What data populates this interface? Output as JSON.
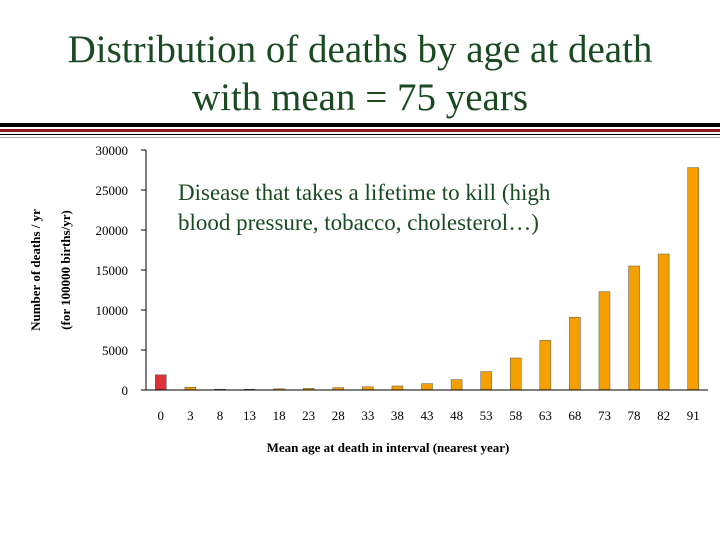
{
  "title": {
    "line1": "Distribution of deaths by age at death",
    "line2": "with mean = 75 years"
  },
  "annotation": {
    "line1": "Disease that takes a lifetime to kill (high",
    "line2": "blood pressure, tobacco, cholesterol…)"
  },
  "colors": {
    "title": "#1a4a22",
    "bar_default": "#f5a000",
    "bar_first": "#e0303a",
    "rule_dark": "#000000",
    "rule_accent": "#8b1a1a"
  },
  "chart_data": {
    "type": "bar",
    "xlabel": "Mean age at death in interval (nearest year)",
    "ylabel_line1": "Number of deaths / yr",
    "ylabel_line2": "(for 100000 births/yr)",
    "ylim": [
      0,
      30000
    ],
    "yticks": [
      0,
      5000,
      10000,
      15000,
      20000,
      25000,
      30000
    ],
    "grid": false,
    "categories": [
      "0",
      "3",
      "8",
      "13",
      "18",
      "23",
      "28",
      "33",
      "38",
      "43",
      "48",
      "53",
      "58",
      "63",
      "68",
      "73",
      "78",
      "82",
      "91"
    ],
    "values": [
      1900,
      350,
      100,
      100,
      150,
      200,
      300,
      400,
      500,
      800,
      1300,
      2300,
      4000,
      6200,
      9100,
      12300,
      15500,
      17000,
      27800
    ]
  }
}
